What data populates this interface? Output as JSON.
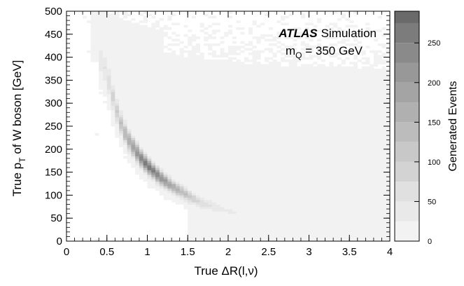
{
  "chart_data": {
    "type": "heatmap",
    "title": "",
    "annotation": {
      "experiment": "ATLAS",
      "label": "Simulation",
      "mass_symbol": "m",
      "mass_subscript": "Q",
      "mass_value": " = 350 GeV"
    },
    "xlabel": "True ΔR(l,ν)",
    "ylabel": {
      "prefix": "True p",
      "subscript": "T",
      "suffix": " of W boson [GeV]"
    },
    "xlim": [
      0,
      4
    ],
    "ylim": [
      0,
      500
    ],
    "x_ticks": [
      "0",
      "0.5",
      "1",
      "1.5",
      "2",
      "2.5",
      "3",
      "3.5",
      "4"
    ],
    "y_ticks": [
      "0",
      "50",
      "100",
      "150",
      "200",
      "250",
      "300",
      "350",
      "400",
      "450",
      "500"
    ],
    "x_tick_values": [
      0,
      0.5,
      1,
      1.5,
      2,
      2.5,
      3,
      3.5,
      4
    ],
    "y_tick_values": [
      0,
      50,
      100,
      150,
      200,
      250,
      300,
      350,
      400,
      450,
      500
    ],
    "colorbar": {
      "label": "Generated Events",
      "range": [
        0,
        290
      ],
      "ticks": [
        "0",
        "50",
        "100",
        "150",
        "200",
        "250"
      ],
      "tick_values": [
        0,
        50,
        100,
        150,
        200,
        250
      ],
      "levels": [
        0,
        25,
        50,
        75,
        100,
        125,
        150,
        175,
        200,
        225,
        250,
        275,
        290
      ],
      "colors": [
        "#f2f2f2",
        "#e9e9e9",
        "#e0e0e0",
        "#d3d3d3",
        "#c8c8c8",
        "#bcbcbc",
        "#b0b0b0",
        "#a4a4a4",
        "#989898",
        "#8a8a8a",
        "#7c7c7c",
        "#6a6a6a"
      ]
    },
    "binning": {
      "x_bins": 80,
      "y_bins": 100
    },
    "distribution": {
      "description_free": true,
      "ridge": [
        [
          0.45,
          390
        ],
        [
          0.55,
          330
        ],
        [
          0.65,
          265
        ],
        [
          0.75,
          225
        ],
        [
          0.9,
          185
        ],
        [
          1.0,
          165
        ],
        [
          1.15,
          140
        ],
        [
          1.3,
          120
        ],
        [
          1.5,
          100
        ],
        [
          1.65,
          85
        ],
        [
          1.9,
          72
        ],
        [
          2.2,
          55
        ],
        [
          2.6,
          40
        ],
        [
          3.0,
          30
        ],
        [
          3.5,
          22
        ],
        [
          3.9,
          15
        ]
      ],
      "ridge_peak_counts": [
        [
          0.45,
          40
        ],
        [
          0.6,
          90
        ],
        [
          0.75,
          160
        ],
        [
          0.9,
          230
        ],
        [
          1.0,
          270
        ],
        [
          1.15,
          230
        ],
        [
          1.3,
          180
        ],
        [
          1.5,
          120
        ],
        [
          1.65,
          70
        ],
        [
          1.9,
          30
        ],
        [
          2.3,
          15
        ],
        [
          3.0,
          8
        ],
        [
          3.9,
          5
        ]
      ]
    }
  }
}
